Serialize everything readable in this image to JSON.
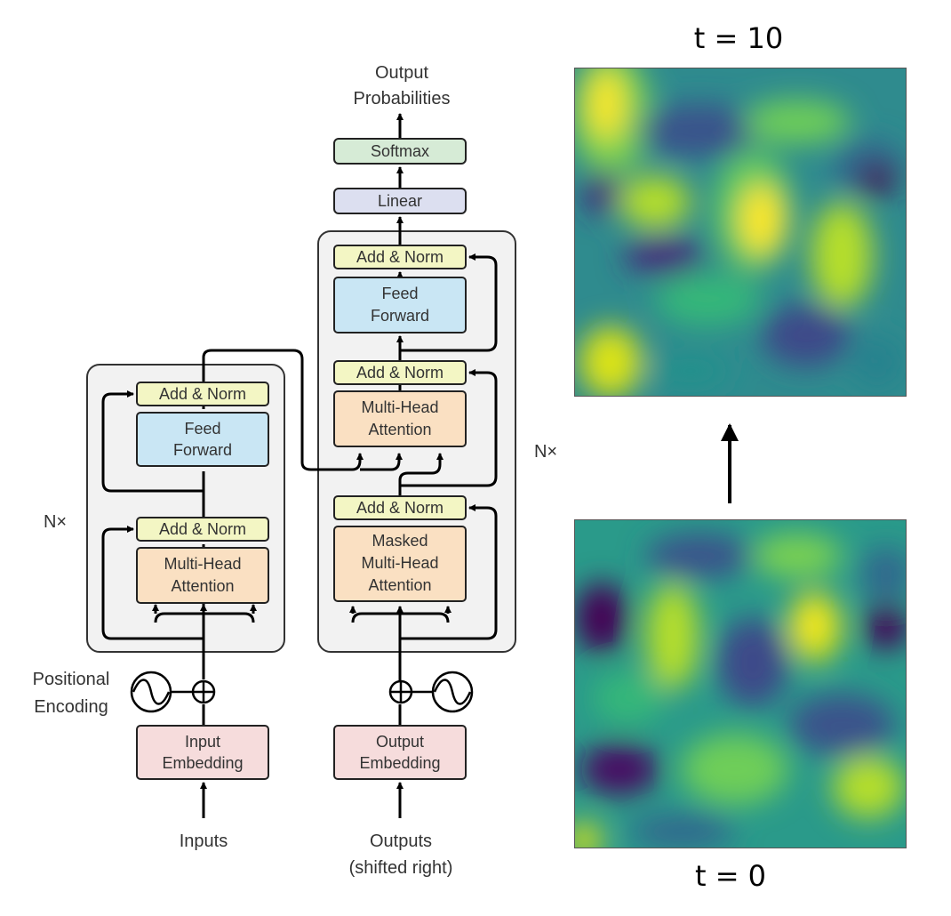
{
  "diagram": {
    "top_label": [
      "Output",
      "Probabilities"
    ],
    "softmax": "Softmax",
    "linear": "Linear",
    "encoder": {
      "n_label": "N×",
      "add_norm_top": "Add & Norm",
      "feed_forward": [
        "Feed",
        "Forward"
      ],
      "add_norm_bottom": "Add & Norm",
      "attention": [
        "Multi-Head",
        "Attention"
      ]
    },
    "decoder": {
      "n_label": "N×",
      "add_norm_top": "Add & Norm",
      "feed_forward": [
        "Feed",
        "Forward"
      ],
      "add_norm_mid": "Add & Norm",
      "cross_attention": [
        "Multi-Head",
        "Attention"
      ],
      "add_norm_bottom": "Add & Norm",
      "masked_attention": [
        "Masked",
        "Multi-Head",
        "Attention"
      ]
    },
    "positional_encoding": [
      "Positional",
      "Encoding"
    ],
    "input_embedding": [
      "Input",
      "Embedding"
    ],
    "output_embedding": [
      "Output",
      "Embedding"
    ],
    "inputs_label": "Inputs",
    "outputs_label": [
      "Outputs",
      "(shifted right)"
    ],
    "colors": {
      "add_norm": "#f3f6c4",
      "feed_forward": "#c9e6f4",
      "attention": "#fae0c2",
      "embedding": "#f6dcdc",
      "softmax": "#d6ebd6",
      "linear": "#dcdff0",
      "block_bg": "#f2f2f2"
    }
  },
  "panels": {
    "top_label": "t = 10",
    "bottom_label": "t = 0",
    "colormap": "viridis"
  }
}
